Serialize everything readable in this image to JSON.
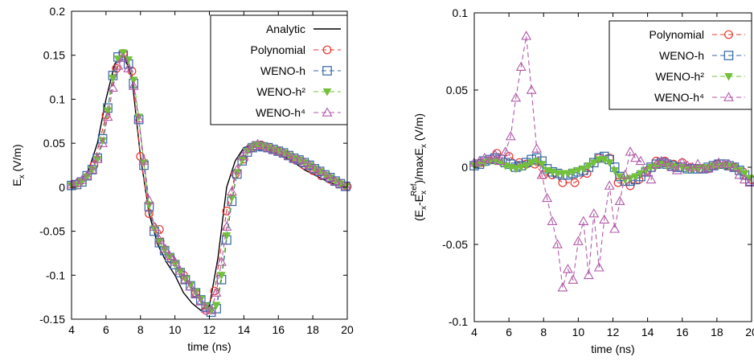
{
  "chart_data": [
    {
      "type": "line",
      "xlabel": "time (ns)",
      "ylabel": {
        "base": "E",
        "sub": "x",
        "rest": "  (V/m)"
      },
      "xlim": [
        4,
        20
      ],
      "ylim": [
        -0.15,
        0.2
      ],
      "xticks": [
        4,
        6,
        8,
        10,
        12,
        14,
        16,
        18,
        20
      ],
      "yticks": [
        -0.15,
        -0.1,
        -0.05,
        0,
        0.05,
        0.1,
        0.15,
        0.2
      ],
      "ytick_labels": [
        "-0.15",
        "-0.1",
        "-0.05",
        "0",
        "0.05",
        "0.1",
        "0.15",
        "0.2"
      ],
      "xtick_labels": [
        "4",
        "6",
        "8",
        "10",
        "12",
        "14",
        "16",
        "18",
        "20"
      ],
      "legend_position": "top-right",
      "series": [
        {
          "name": "Analytic",
          "color": "#000000",
          "dash": "solid",
          "marker": "none",
          "x": [
            4.0,
            4.5,
            5.0,
            5.5,
            6.0,
            6.5,
            7.0,
            7.5,
            8.0,
            8.5,
            9.0,
            9.5,
            10.0,
            10.5,
            11.0,
            11.5,
            12.0,
            12.5,
            13.0,
            13.5,
            14.0,
            14.5,
            15.0,
            15.5,
            16.0,
            16.5,
            17.0,
            17.5,
            18.0,
            18.5,
            19.0,
            19.5,
            20.0
          ],
          "y": [
            0.002,
            0.006,
            0.02,
            0.05,
            0.1,
            0.14,
            0.152,
            0.125,
            0.035,
            -0.03,
            -0.065,
            -0.085,
            -0.1,
            -0.12,
            -0.132,
            -0.14,
            -0.135,
            -0.08,
            0.0,
            0.03,
            0.045,
            0.048,
            0.047,
            0.043,
            0.038,
            0.033,
            0.027,
            0.02,
            0.015,
            0.01,
            0.005,
            0.002,
            0.0
          ]
        },
        {
          "name": "Polynomial",
          "color": "#e8352e",
          "dash": "dashed",
          "marker": "circle",
          "x": [
            4.4,
            5.3,
            6.0,
            6.6,
            7.0,
            7.5,
            8.0,
            8.5,
            9.1,
            9.8,
            10.5,
            11.2,
            11.8,
            12.3,
            13.0,
            13.5,
            14.0,
            14.5,
            15.0,
            15.5,
            16.0,
            16.5,
            17.0,
            17.5,
            18.0,
            18.5,
            19.0,
            19.5,
            20.0
          ],
          "y": [
            0.005,
            0.025,
            0.082,
            0.135,
            0.152,
            0.132,
            0.035,
            -0.03,
            -0.048,
            -0.082,
            -0.1,
            -0.12,
            -0.14,
            -0.118,
            -0.027,
            0.015,
            0.032,
            0.045,
            0.048,
            0.044,
            0.041,
            0.036,
            0.031,
            0.025,
            0.019,
            0.013,
            0.009,
            0.004,
            0.001
          ]
        },
        {
          "name": "WENO-h",
          "color": "#3465a4",
          "dash": "dashed",
          "marker": "square",
          "x": [
            4.0,
            4.3,
            4.6,
            4.9,
            5.2,
            5.5,
            5.8,
            6.1,
            6.4,
            6.7,
            7.0,
            7.3,
            7.6,
            7.9,
            8.2,
            8.5,
            8.8,
            9.1,
            9.4,
            9.7,
            10.0,
            10.3,
            10.6,
            10.9,
            11.2,
            11.5,
            11.8,
            12.1,
            12.4,
            12.7,
            13.0,
            13.3,
            13.6,
            13.9,
            14.2,
            14.5,
            14.8,
            15.1,
            15.4,
            15.7,
            16.0,
            16.3,
            16.6,
            16.9,
            17.2,
            17.5,
            17.8,
            18.1,
            18.4,
            18.7,
            19.0,
            19.3,
            19.6,
            19.9
          ],
          "y": [
            0.002,
            0.003,
            0.006,
            0.013,
            0.02,
            0.033,
            0.055,
            0.09,
            0.127,
            0.148,
            0.15,
            0.14,
            0.118,
            0.077,
            0.025,
            -0.022,
            -0.05,
            -0.063,
            -0.072,
            -0.08,
            -0.088,
            -0.097,
            -0.105,
            -0.112,
            -0.12,
            -0.128,
            -0.136,
            -0.142,
            -0.138,
            -0.105,
            -0.06,
            -0.016,
            0.015,
            0.03,
            0.04,
            0.045,
            0.047,
            0.046,
            0.045,
            0.043,
            0.041,
            0.039,
            0.036,
            0.033,
            0.031,
            0.028,
            0.025,
            0.021,
            0.018,
            0.014,
            0.011,
            0.007,
            0.004,
            0.001
          ]
        },
        {
          "name": "WENO-h²",
          "color": "#73c03a",
          "dash": "dashed",
          "marker": "triangle-down",
          "x": [
            4.0,
            4.3,
            4.6,
            4.9,
            5.2,
            5.5,
            5.8,
            6.1,
            6.4,
            6.7,
            7.0,
            7.3,
            7.6,
            7.9,
            8.2,
            8.5,
            8.8,
            9.1,
            9.4,
            9.7,
            10.0,
            10.3,
            10.6,
            10.9,
            11.2,
            11.5,
            11.8,
            12.1,
            12.4,
            12.7,
            13.0,
            13.3,
            13.6,
            13.9,
            14.2,
            14.5,
            14.8,
            15.1,
            15.4,
            15.7,
            16.0,
            16.3,
            16.6,
            16.9,
            17.2,
            17.5,
            17.8,
            18.1,
            18.4,
            18.7,
            19.0,
            19.3,
            19.6,
            19.9
          ],
          "y": [
            0.002,
            0.003,
            0.006,
            0.012,
            0.02,
            0.032,
            0.053,
            0.087,
            0.124,
            0.146,
            0.153,
            0.145,
            0.122,
            0.08,
            0.028,
            -0.02,
            -0.047,
            -0.062,
            -0.071,
            -0.079,
            -0.087,
            -0.096,
            -0.104,
            -0.111,
            -0.119,
            -0.127,
            -0.135,
            -0.14,
            -0.134,
            -0.1,
            -0.055,
            -0.012,
            0.017,
            0.031,
            0.041,
            0.046,
            0.048,
            0.047,
            0.045,
            0.043,
            0.041,
            0.039,
            0.036,
            0.033,
            0.031,
            0.028,
            0.025,
            0.021,
            0.018,
            0.014,
            0.011,
            0.007,
            0.004,
            0.001
          ]
        },
        {
          "name": "WENO-h⁴",
          "color": "#b05aa8",
          "dash": "dashed",
          "marker": "triangle-up",
          "x": [
            4.0,
            4.3,
            4.6,
            4.9,
            5.2,
            5.5,
            5.8,
            6.1,
            6.4,
            6.7,
            7.0,
            7.3,
            7.6,
            7.9,
            8.2,
            8.5,
            8.8,
            9.1,
            9.4,
            9.7,
            10.0,
            10.3,
            10.6,
            10.9,
            11.2,
            11.5,
            11.8,
            12.1,
            12.4,
            12.7,
            13.0,
            13.3,
            13.6,
            13.9,
            14.2,
            14.5,
            14.8,
            15.1,
            15.4,
            15.7,
            16.0,
            16.3,
            16.6,
            16.9,
            17.2,
            17.5,
            17.8,
            18.1,
            18.4,
            18.7,
            19.0,
            19.3,
            19.6,
            19.9
          ],
          "y": [
            0.003,
            0.005,
            0.008,
            0.013,
            0.02,
            0.032,
            0.05,
            0.08,
            0.113,
            0.138,
            0.147,
            0.135,
            0.115,
            0.078,
            0.03,
            -0.015,
            -0.045,
            -0.06,
            -0.07,
            -0.078,
            -0.085,
            -0.095,
            -0.105,
            -0.113,
            -0.122,
            -0.13,
            -0.138,
            -0.14,
            -0.12,
            -0.085,
            -0.045,
            -0.005,
            0.02,
            0.035,
            0.043,
            0.047,
            0.049,
            0.047,
            0.045,
            0.043,
            0.041,
            0.039,
            0.036,
            0.033,
            0.031,
            0.028,
            0.025,
            0.021,
            0.018,
            0.014,
            0.011,
            0.007,
            0.004,
            0.001
          ]
        }
      ]
    },
    {
      "type": "line",
      "xlabel": "time (ns)",
      "ylabel": {
        "p1": "(E",
        "s1": "x",
        "p2": "-E",
        "s2": "x",
        "sup2": "Ref",
        "p3": ")/maxE",
        "s3": "x",
        "p4": "  (V/m)"
      },
      "xlim": [
        4,
        20
      ],
      "ylim": [
        -0.1,
        0.1
      ],
      "xticks": [
        4,
        6,
        8,
        10,
        12,
        14,
        16,
        18,
        20
      ],
      "yticks": [
        -0.1,
        -0.05,
        0,
        0.05,
        0.1
      ],
      "ytick_labels": [
        "-0.1",
        "-0.05",
        "0",
        "0.05",
        "0.1"
      ],
      "xtick_labels": [
        "4",
        "6",
        "8",
        "10",
        "12",
        "14",
        "16",
        "18",
        "20"
      ],
      "legend_position": "top-right",
      "series": [
        {
          "name": "Polynomial",
          "color": "#e8352e",
          "dash": "dashed",
          "marker": "circle",
          "x": [
            4.4,
            5.3,
            6.0,
            6.6,
            7.0,
            7.5,
            8.0,
            8.5,
            9.1,
            9.8,
            10.5,
            11.2,
            11.8,
            12.3,
            13.0,
            13.5,
            14.0,
            14.5,
            15.0,
            15.5,
            16.0,
            16.5,
            17.0,
            17.5,
            18.0,
            18.5,
            19.0,
            19.5,
            20.0
          ],
          "y": [
            0.003,
            0.009,
            0.007,
            0.003,
            0.002,
            0.002,
            -0.005,
            -0.005,
            -0.01,
            -0.01,
            -0.004,
            0.006,
            0.006,
            -0.01,
            -0.012,
            -0.008,
            -0.002,
            0.004,
            0.004,
            0.002,
            0.003,
            0.0,
            -0.001,
            -0.001,
            0.002,
            0.001,
            0.0,
            -0.003,
            -0.008
          ]
        },
        {
          "name": "WENO-h",
          "color": "#3465a4",
          "dash": "dashed",
          "marker": "square",
          "x": [
            4.0,
            4.3,
            4.6,
            4.9,
            5.2,
            5.5,
            5.8,
            6.1,
            6.4,
            6.7,
            7.0,
            7.3,
            7.6,
            7.9,
            8.2,
            8.5,
            8.8,
            9.1,
            9.4,
            9.7,
            10.0,
            10.3,
            10.6,
            10.9,
            11.2,
            11.5,
            11.8,
            12.1,
            12.4,
            12.7,
            13.0,
            13.3,
            13.6,
            13.9,
            14.2,
            14.5,
            14.8,
            15.1,
            15.4,
            15.7,
            16.0,
            16.3,
            16.6,
            16.9,
            17.2,
            17.5,
            17.8,
            18.1,
            18.4,
            18.7,
            19.0,
            19.3,
            19.6,
            19.9
          ],
          "y": [
            0.001,
            0.002,
            0.004,
            0.005,
            0.006,
            0.005,
            0.003,
            0.002,
            0.0,
            0.001,
            0.003,
            0.005,
            0.006,
            0.004,
            -0.001,
            -0.003,
            -0.004,
            -0.005,
            -0.005,
            -0.004,
            -0.003,
            -0.002,
            0.0,
            0.003,
            0.006,
            0.007,
            0.005,
            0.0,
            -0.006,
            -0.009,
            -0.009,
            -0.008,
            -0.006,
            -0.003,
            0.0,
            0.002,
            0.003,
            0.002,
            0.001,
            0.0,
            0.0,
            -0.001,
            -0.001,
            -0.001,
            -0.001,
            0.0,
            0.001,
            0.002,
            0.002,
            0.001,
            0.0,
            -0.002,
            -0.005,
            -0.009
          ]
        },
        {
          "name": "WENO-h²",
          "color": "#73c03a",
          "dash": "dashed",
          "marker": "triangle-down",
          "x": [
            4.0,
            4.3,
            4.6,
            4.9,
            5.2,
            5.5,
            5.8,
            6.1,
            6.4,
            6.7,
            7.0,
            7.3,
            7.6,
            7.9,
            8.2,
            8.5,
            8.8,
            9.1,
            9.4,
            9.7,
            10.0,
            10.3,
            10.6,
            10.9,
            11.2,
            11.5,
            11.8,
            12.1,
            12.4,
            12.7,
            13.0,
            13.3,
            13.6,
            13.9,
            14.2,
            14.5,
            14.8,
            15.1,
            15.4,
            15.7,
            16.0,
            16.3,
            16.6,
            16.9,
            17.2,
            17.5,
            17.8,
            18.1,
            18.4,
            18.7,
            19.0,
            19.3,
            19.6,
            19.9
          ],
          "y": [
            0.001,
            0.002,
            0.003,
            0.004,
            0.004,
            0.003,
            0.001,
            0.0,
            -0.001,
            0.0,
            0.001,
            0.003,
            0.004,
            0.002,
            -0.002,
            -0.003,
            -0.004,
            -0.004,
            -0.004,
            -0.003,
            -0.002,
            -0.001,
            0.001,
            0.003,
            0.005,
            0.005,
            0.003,
            -0.002,
            -0.006,
            -0.008,
            -0.007,
            -0.006,
            -0.004,
            -0.002,
            0.0,
            0.001,
            0.002,
            0.001,
            0.001,
            0.0,
            0.0,
            -0.001,
            -0.001,
            -0.001,
            0.0,
            0.0,
            0.001,
            0.001,
            0.001,
            0.001,
            0.0,
            -0.002,
            -0.004,
            -0.007
          ]
        },
        {
          "name": "WENO-h⁴",
          "color": "#b05aa8",
          "dash": "dashed",
          "marker": "triangle-up",
          "x": [
            4.0,
            4.3,
            4.6,
            4.9,
            5.2,
            5.5,
            5.8,
            6.1,
            6.4,
            6.7,
            7.0,
            7.3,
            7.6,
            7.9,
            8.2,
            8.5,
            8.8,
            9.1,
            9.4,
            9.7,
            10.0,
            10.3,
            10.6,
            10.9,
            11.2,
            11.5,
            11.8,
            12.1,
            12.4,
            12.7,
            13.0,
            13.3,
            13.6,
            13.9,
            14.2,
            14.5,
            14.8,
            15.1,
            15.4,
            15.7,
            16.0,
            16.3,
            16.6,
            16.9,
            17.2,
            17.5,
            17.8,
            18.1,
            18.4,
            18.7,
            19.0,
            19.3,
            19.6,
            19.9
          ],
          "y": [
            0.003,
            0.004,
            0.006,
            0.005,
            0.008,
            0.004,
            0.01,
            0.02,
            0.045,
            0.065,
            0.085,
            0.05,
            0.012,
            -0.005,
            -0.02,
            -0.035,
            -0.05,
            -0.078,
            -0.066,
            -0.073,
            -0.048,
            -0.035,
            -0.07,
            -0.03,
            -0.065,
            -0.034,
            -0.012,
            -0.04,
            -0.022,
            -0.005,
            0.01,
            0.006,
            0.004,
            -0.003,
            -0.008,
            0.002,
            0.004,
            0.003,
            0.0,
            -0.002,
            0.003,
            0.001,
            0.0,
            0.002,
            -0.001,
            -0.001,
            0.001,
            0.003,
            0.002,
            0.002,
            0.0,
            -0.005,
            -0.008,
            -0.01
          ]
        }
      ]
    }
  ]
}
